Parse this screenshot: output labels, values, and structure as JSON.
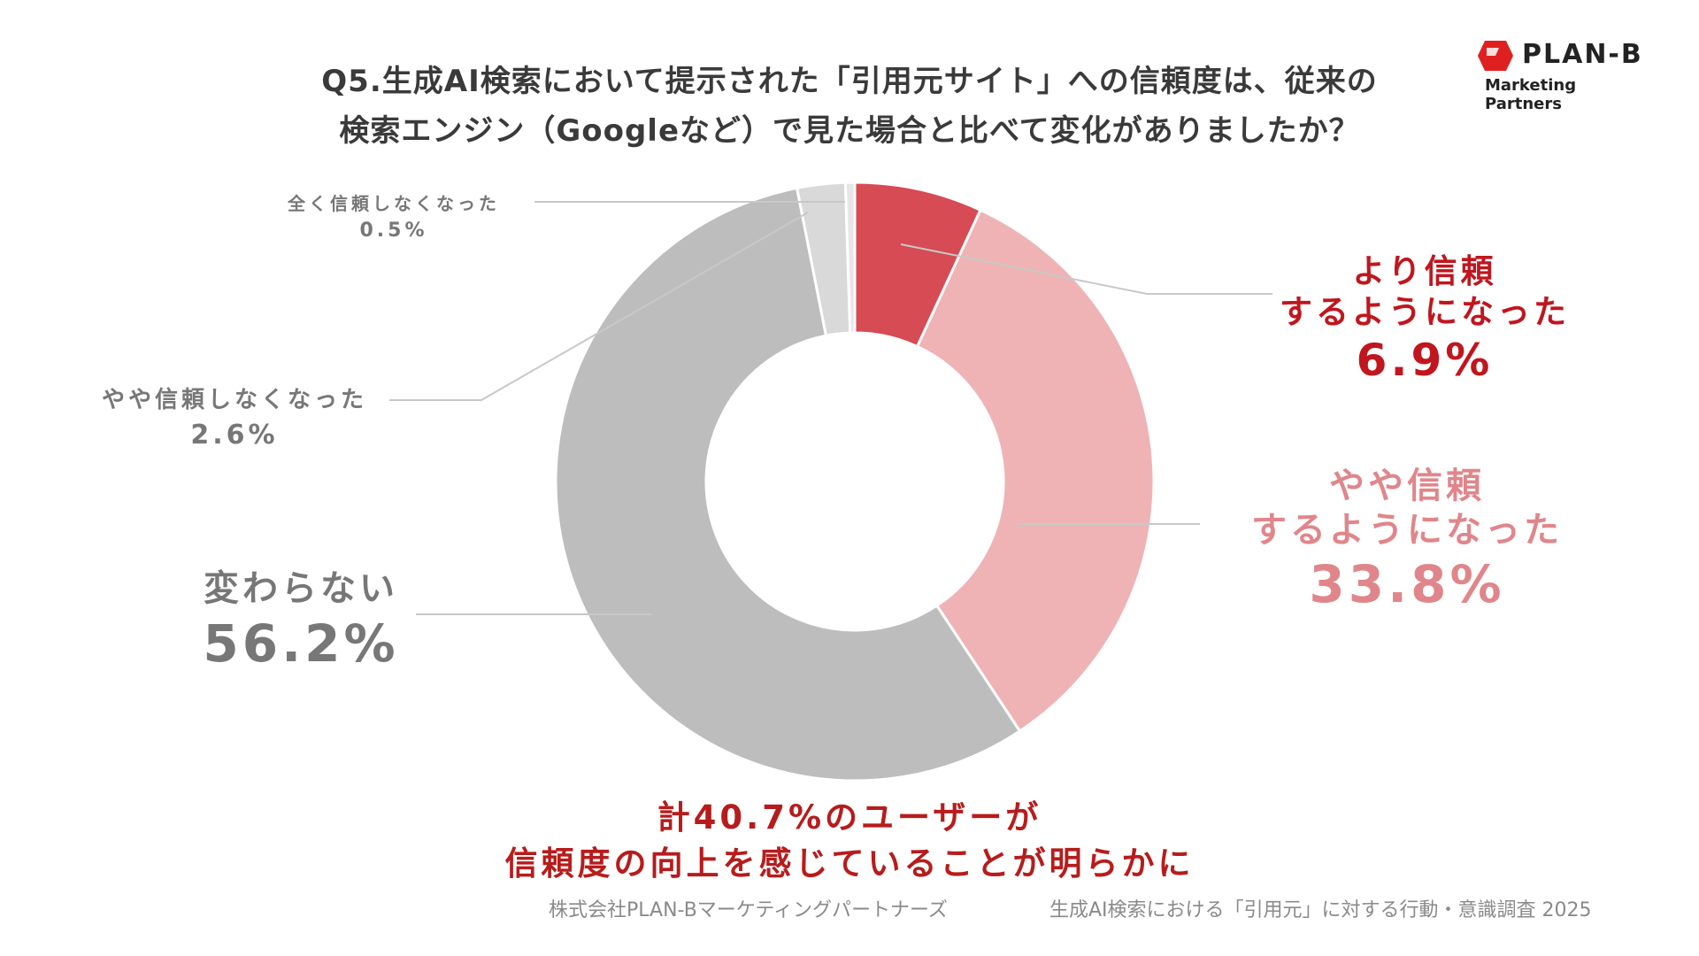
{
  "title": {
    "line1": "Q5.生成AI検索において提示された「引用元サイト」への信頼度は、従来の",
    "line2": "検索エンジン（Googleなど）で見た場合と比べて変化がありましたか？"
  },
  "logo": {
    "name": "PLAN-B",
    "sub": "Marketing Partners",
    "color": "#e02020"
  },
  "chart_data": {
    "type": "pie",
    "donut": true,
    "title": "Q5.生成AI検索において提示された「引用元サイト」への信頼度は、従来の検索エンジン（Googleなど）で見た場合と比べて変化がありましたか？",
    "slices": [
      {
        "label": "より信頼するようになった",
        "value": 6.9,
        "value_label": "6.9%",
        "color": "#d64b54"
      },
      {
        "label": "やや信頼するようになった",
        "value": 33.8,
        "value_label": "33.8%",
        "color": "#efb3b5"
      },
      {
        "label": "変わらない",
        "value": 56.2,
        "value_label": "56.2%",
        "color": "#bdbdbd"
      },
      {
        "label": "やや信頼しなくなった",
        "value": 2.6,
        "value_label": "2.6%",
        "color": "#d9d9d9"
      },
      {
        "label": "全く信頼しなくなった",
        "value": 0.5,
        "value_label": "0.5%",
        "color": "#e6e6e6"
      }
    ]
  },
  "labels": {
    "more_trust": {
      "line1": "より信頼",
      "line2": "するようになった",
      "value": "6.9%",
      "color": "#c0161e"
    },
    "some_trust": {
      "line1": "やや信頼",
      "line2": "するようになった",
      "value": "33.8%",
      "color": "#e0868b"
    },
    "no_change": {
      "line1": "変わらない",
      "value": "56.2%",
      "color": "#777777"
    },
    "some_less": {
      "line1": "やや信頼しなくなった",
      "value": "2.6%",
      "color": "#777777"
    },
    "much_less": {
      "line1": "全く信頼しなくなった",
      "value": "0.5%",
      "color": "#777777"
    }
  },
  "conclusion": {
    "line1": "計40.7%のユーザーが",
    "line2": "信頼度の向上を感じていることが明らかに"
  },
  "footer": {
    "left": "株式会社PLAN-Bマーケティングパートナーズ",
    "right": "生成AI検索における「引用元」に対する行動・意識調査 2025"
  }
}
